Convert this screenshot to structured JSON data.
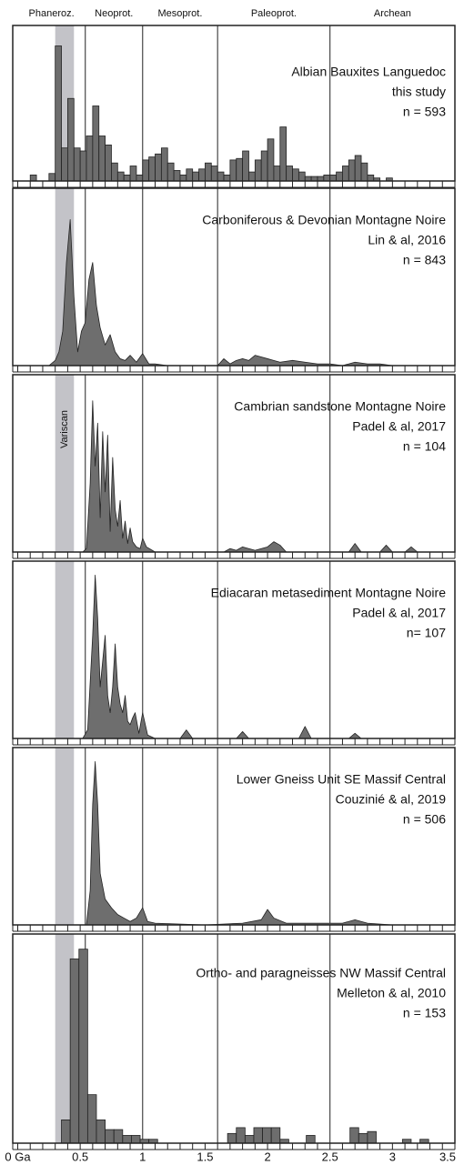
{
  "axis": {
    "xlim": [
      -0.04,
      3.5
    ],
    "xticks": [
      {
        "value": 0,
        "label": "0 Ga"
      },
      0.5,
      1,
      1.5,
      2,
      2.5,
      3,
      3.5
    ],
    "minor_xticks": [
      0,
      0.1,
      0.2,
      0.3,
      0.4,
      0.5,
      0.6,
      0.7,
      0.8,
      0.9,
      1.0,
      1.1,
      1.2,
      1.3,
      1.4,
      1.5,
      1.6,
      1.7,
      1.8,
      1.9,
      2.0,
      2.1,
      2.2,
      2.3,
      2.4,
      2.5,
      2.6,
      2.7,
      2.8,
      2.9,
      3.0,
      3.1,
      3.2,
      3.3,
      3.4,
      3.5
    ]
  },
  "eons": [
    {
      "name": "Phaneroz.",
      "start": 0
    },
    {
      "name": "Neoprot.",
      "start": 0.541
    },
    {
      "name": "Mesoprot.",
      "start": 1.0
    },
    {
      "name": "Paleoprot.",
      "start": 1.6
    },
    {
      "name": "Archean",
      "start": 2.5
    }
  ],
  "variscan": {
    "label": "Variscan",
    "start": 0.3,
    "end": 0.45
  },
  "chart_data": [
    {
      "type": "histogram",
      "title": "Albian Bauxites Languedoc",
      "source": "this study",
      "n_label": "n = 593",
      "color": "#6d6d6d",
      "ylim": [
        0,
        100
      ],
      "bins": [
        0,
        0.05,
        0.1,
        0.15,
        0.2,
        0.25,
        0.3,
        0.35,
        0.4,
        0.45,
        0.5,
        0.55,
        0.6,
        0.65,
        0.7,
        0.75,
        0.8,
        0.85,
        0.9,
        0.95,
        1.0,
        1.05,
        1.1,
        1.15,
        1.2,
        1.25,
        1.3,
        1.35,
        1.4,
        1.45,
        1.5,
        1.55,
        1.6,
        1.65,
        1.7,
        1.75,
        1.8,
        1.85,
        1.9,
        1.95,
        2.0,
        2.05,
        2.1,
        2.15,
        2.2,
        2.25,
        2.3,
        2.35,
        2.4,
        2.45,
        2.5,
        2.55,
        2.6,
        2.65,
        2.7,
        2.75,
        2.8,
        2.85,
        2.9,
        2.95,
        3.0
      ],
      "values": [
        0,
        0,
        4,
        0,
        0,
        5,
        90,
        22,
        55,
        22,
        20,
        30,
        50,
        30,
        24,
        12,
        6,
        4,
        10,
        4,
        14,
        16,
        18,
        22,
        12,
        7,
        4,
        8,
        6,
        8,
        12,
        10,
        6,
        4,
        14,
        15,
        20,
        6,
        14,
        20,
        28,
        10,
        36,
        10,
        8,
        6,
        3,
        3,
        3,
        4,
        4,
        6,
        10,
        14,
        17,
        12,
        4,
        2,
        0,
        2
      ]
    },
    {
      "type": "area",
      "title": "Carboniferous & Devonian Montagne Noire",
      "source": "Lin & al, 2016",
      "n_label": "n = 843",
      "color": "#6e6e6e",
      "ylim": [
        0,
        100
      ],
      "x": [
        0.2,
        0.25,
        0.3,
        0.33,
        0.36,
        0.39,
        0.42,
        0.45,
        0.48,
        0.51,
        0.54,
        0.57,
        0.6,
        0.63,
        0.66,
        0.7,
        0.74,
        0.78,
        0.82,
        0.86,
        0.9,
        0.95,
        1.0,
        1.05,
        1.1,
        1.2,
        1.4,
        1.6,
        1.65,
        1.7,
        1.75,
        1.8,
        1.85,
        1.9,
        1.95,
        2.0,
        2.05,
        2.1,
        2.2,
        2.3,
        2.4,
        2.5,
        2.6,
        2.7,
        2.8,
        2.9,
        3.0
      ],
      "values": [
        0,
        0,
        3,
        8,
        20,
        60,
        85,
        40,
        8,
        20,
        25,
        50,
        60,
        35,
        22,
        12,
        18,
        8,
        4,
        3,
        6,
        2,
        7,
        1,
        1,
        0,
        0,
        0,
        4,
        1,
        3,
        4,
        3,
        6,
        5,
        4,
        3,
        2,
        3,
        2,
        1,
        1,
        0,
        2,
        1,
        1,
        0
      ]
    },
    {
      "type": "area",
      "title": "Cambrian sandstone Montagne Noire",
      "source": "Padel & al, 2017",
      "n_label": "n = 104",
      "color": "#6e6e6e",
      "ylim": [
        0,
        100
      ],
      "x": [
        0.52,
        0.55,
        0.58,
        0.6,
        0.62,
        0.64,
        0.66,
        0.68,
        0.7,
        0.72,
        0.74,
        0.76,
        0.78,
        0.8,
        0.82,
        0.84,
        0.86,
        0.88,
        0.9,
        0.92,
        0.95,
        0.98,
        1.0,
        1.03,
        1.1,
        1.5,
        1.65,
        1.7,
        1.75,
        1.8,
        1.85,
        1.9,
        1.95,
        2.0,
        2.05,
        2.1,
        2.15,
        2.6,
        2.65,
        2.7,
        2.75,
        2.9,
        2.95,
        3.0,
        3.1,
        3.15,
        3.2
      ],
      "values": [
        0,
        2,
        40,
        88,
        50,
        75,
        20,
        70,
        35,
        68,
        12,
        55,
        25,
        15,
        30,
        8,
        18,
        5,
        14,
        6,
        3,
        2,
        8,
        3,
        0,
        0,
        0,
        2,
        1,
        3,
        2,
        1,
        2,
        3,
        6,
        4,
        0,
        0,
        0,
        5,
        0,
        0,
        4,
        0,
        0,
        3,
        0
      ]
    },
    {
      "type": "area",
      "title": "Ediacaran metasediment Montagne Noire",
      "source": "Padel & al, 2017",
      "n_label": "n= 107",
      "color": "#6e6e6e",
      "ylim": [
        0,
        100
      ],
      "x": [
        0.52,
        0.56,
        0.6,
        0.62,
        0.64,
        0.66,
        0.68,
        0.7,
        0.72,
        0.74,
        0.76,
        0.78,
        0.8,
        0.82,
        0.84,
        0.86,
        0.88,
        0.9,
        0.92,
        0.94,
        0.97,
        1.0,
        1.04,
        1.1,
        1.3,
        1.35,
        1.4,
        1.75,
        1.8,
        1.85,
        2.25,
        2.3,
        2.35,
        2.65,
        2.7,
        2.75
      ],
      "values": [
        0,
        5,
        60,
        95,
        70,
        30,
        45,
        60,
        25,
        15,
        30,
        55,
        30,
        20,
        15,
        25,
        10,
        8,
        12,
        15,
        3,
        15,
        2,
        0,
        0,
        5,
        0,
        0,
        4,
        0,
        0,
        7,
        0,
        0,
        3,
        0
      ]
    },
    {
      "type": "area",
      "title": "Lower Gneiss Unit SE Massif Central",
      "source": "Couzinié & al, 2019",
      "n_label": "n = 506",
      "color": "#6e6e6e",
      "ylim": [
        0,
        100
      ],
      "x": [
        0.5,
        0.55,
        0.58,
        0.6,
        0.62,
        0.64,
        0.66,
        0.7,
        0.75,
        0.8,
        0.85,
        0.9,
        0.95,
        1.0,
        1.04,
        1.1,
        1.5,
        1.8,
        1.95,
        2.0,
        2.05,
        2.15,
        2.4,
        2.6,
        2.7,
        2.8,
        3.0
      ],
      "values": [
        0,
        0,
        20,
        70,
        95,
        70,
        30,
        15,
        10,
        6,
        4,
        2,
        4,
        10,
        2,
        1,
        0,
        1,
        3,
        9,
        4,
        1,
        1,
        1,
        3,
        1,
        0
      ]
    },
    {
      "type": "histogram",
      "title": "Ortho- and paragneisses NW Massif Central",
      "source": "Melleton & al, 2010",
      "n_label": "n = 153",
      "color": "#6d6d6d",
      "ylim": [
        0,
        105
      ],
      "bins": [
        0.35,
        0.42,
        0.49,
        0.56,
        0.63,
        0.7,
        0.77,
        0.84,
        0.91,
        0.98,
        1.05,
        1.12,
        1.19,
        1.26,
        1.33,
        1.4,
        1.47,
        1.54,
        1.61,
        1.68,
        1.75,
        1.82,
        1.89,
        1.96,
        2.03,
        2.1,
        2.17,
        2.24,
        2.31,
        2.38,
        2.45,
        2.52,
        2.59,
        2.66,
        2.73,
        2.8,
        2.87,
        2.94,
        3.01,
        3.08,
        3.15,
        3.22,
        3.29,
        3.36
      ],
      "values": [
        12,
        95,
        100,
        25,
        12,
        7,
        7,
        4,
        4,
        2,
        2,
        0,
        0,
        0,
        0,
        0,
        0,
        0,
        0,
        5,
        8,
        4,
        8,
        8,
        8,
        2,
        0,
        0,
        4,
        0,
        0,
        0,
        0,
        8,
        5,
        6,
        0,
        0,
        0,
        2,
        0,
        2,
        0
      ]
    }
  ]
}
